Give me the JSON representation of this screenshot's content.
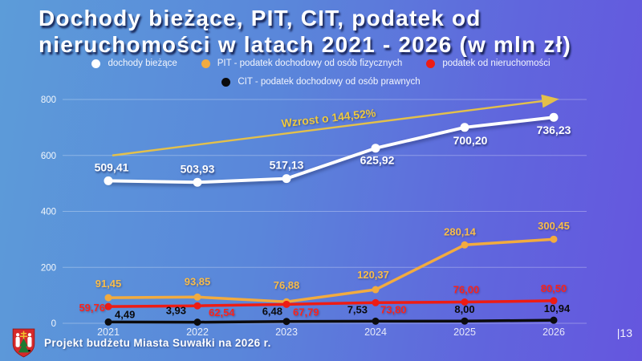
{
  "slide": {
    "title_line1": "Dochody bieżące, PIT, CIT,  podatek od",
    "title_line2": "nieruchomości w latach 2021 - 2026 (w mln zł)",
    "footer": "Projekt budżetu Miasta Suwałki na 2026 r.",
    "page_number": "|13"
  },
  "colors": {
    "background_left": "#5c9cd9",
    "background_right": "#6556de",
    "dochody_biezace": "#ffffff",
    "pit": "#f2ab3f",
    "podatek_od_nieruchomosci": "#ee1c14",
    "cit": "#0b0b0d",
    "arrow": "#e3c04b",
    "annotation_text": "#eec93f",
    "title_shadow": "#10184a"
  },
  "legend": [
    {
      "label": "dochody bieżące",
      "color": "#ffffff"
    },
    {
      "label": "PIT - podatek dochodowy od osób fizycznych",
      "color": "#f2ab3f"
    },
    {
      "label": "podatek od nieruchomości",
      "color": "#ee1c14"
    },
    {
      "label": "CIT - podatek dochodowy od osób prawnych",
      "color": "#0b0b0d"
    }
  ],
  "chart_data": {
    "type": "line",
    "title": "Dochody bieżące, PIT, CIT, podatek od nieruchomości w latach 2021 - 2026 (w mln zł)",
    "x": [
      "2021",
      "2022",
      "2023",
      "2024",
      "2025",
      "2026"
    ],
    "series": [
      {
        "name": "dochody bieżące",
        "color": "#ffffff",
        "values": [
          509.41,
          503.93,
          517.13,
          625.92,
          700.2,
          736.23
        ]
      },
      {
        "name": "PIT - podatek dochodowy od osób fizycznych",
        "color": "#f2ab3f",
        "values": [
          91.45,
          93.85,
          76.88,
          120.37,
          280.14,
          300.45
        ]
      },
      {
        "name": "podatek od nieruchomości",
        "color": "#ee1c14",
        "values": [
          59.76,
          62.54,
          67.79,
          73.8,
          76.0,
          80.5
        ]
      },
      {
        "name": "CIT - podatek dochodowy od osób prawnych",
        "color": "#0b0b0d",
        "values": [
          4.49,
          3.93,
          6.48,
          7.53,
          8.0,
          10.94
        ]
      }
    ],
    "annotation": {
      "text": "Wzrost o 144,52%",
      "arrow_from_y": 600,
      "arrow_to_y": 800
    },
    "y_ticks": [
      0,
      200,
      400,
      600,
      800
    ],
    "ylim": [
      0,
      800
    ],
    "grid": true,
    "legend_position": "top",
    "decimal_separator": ","
  }
}
